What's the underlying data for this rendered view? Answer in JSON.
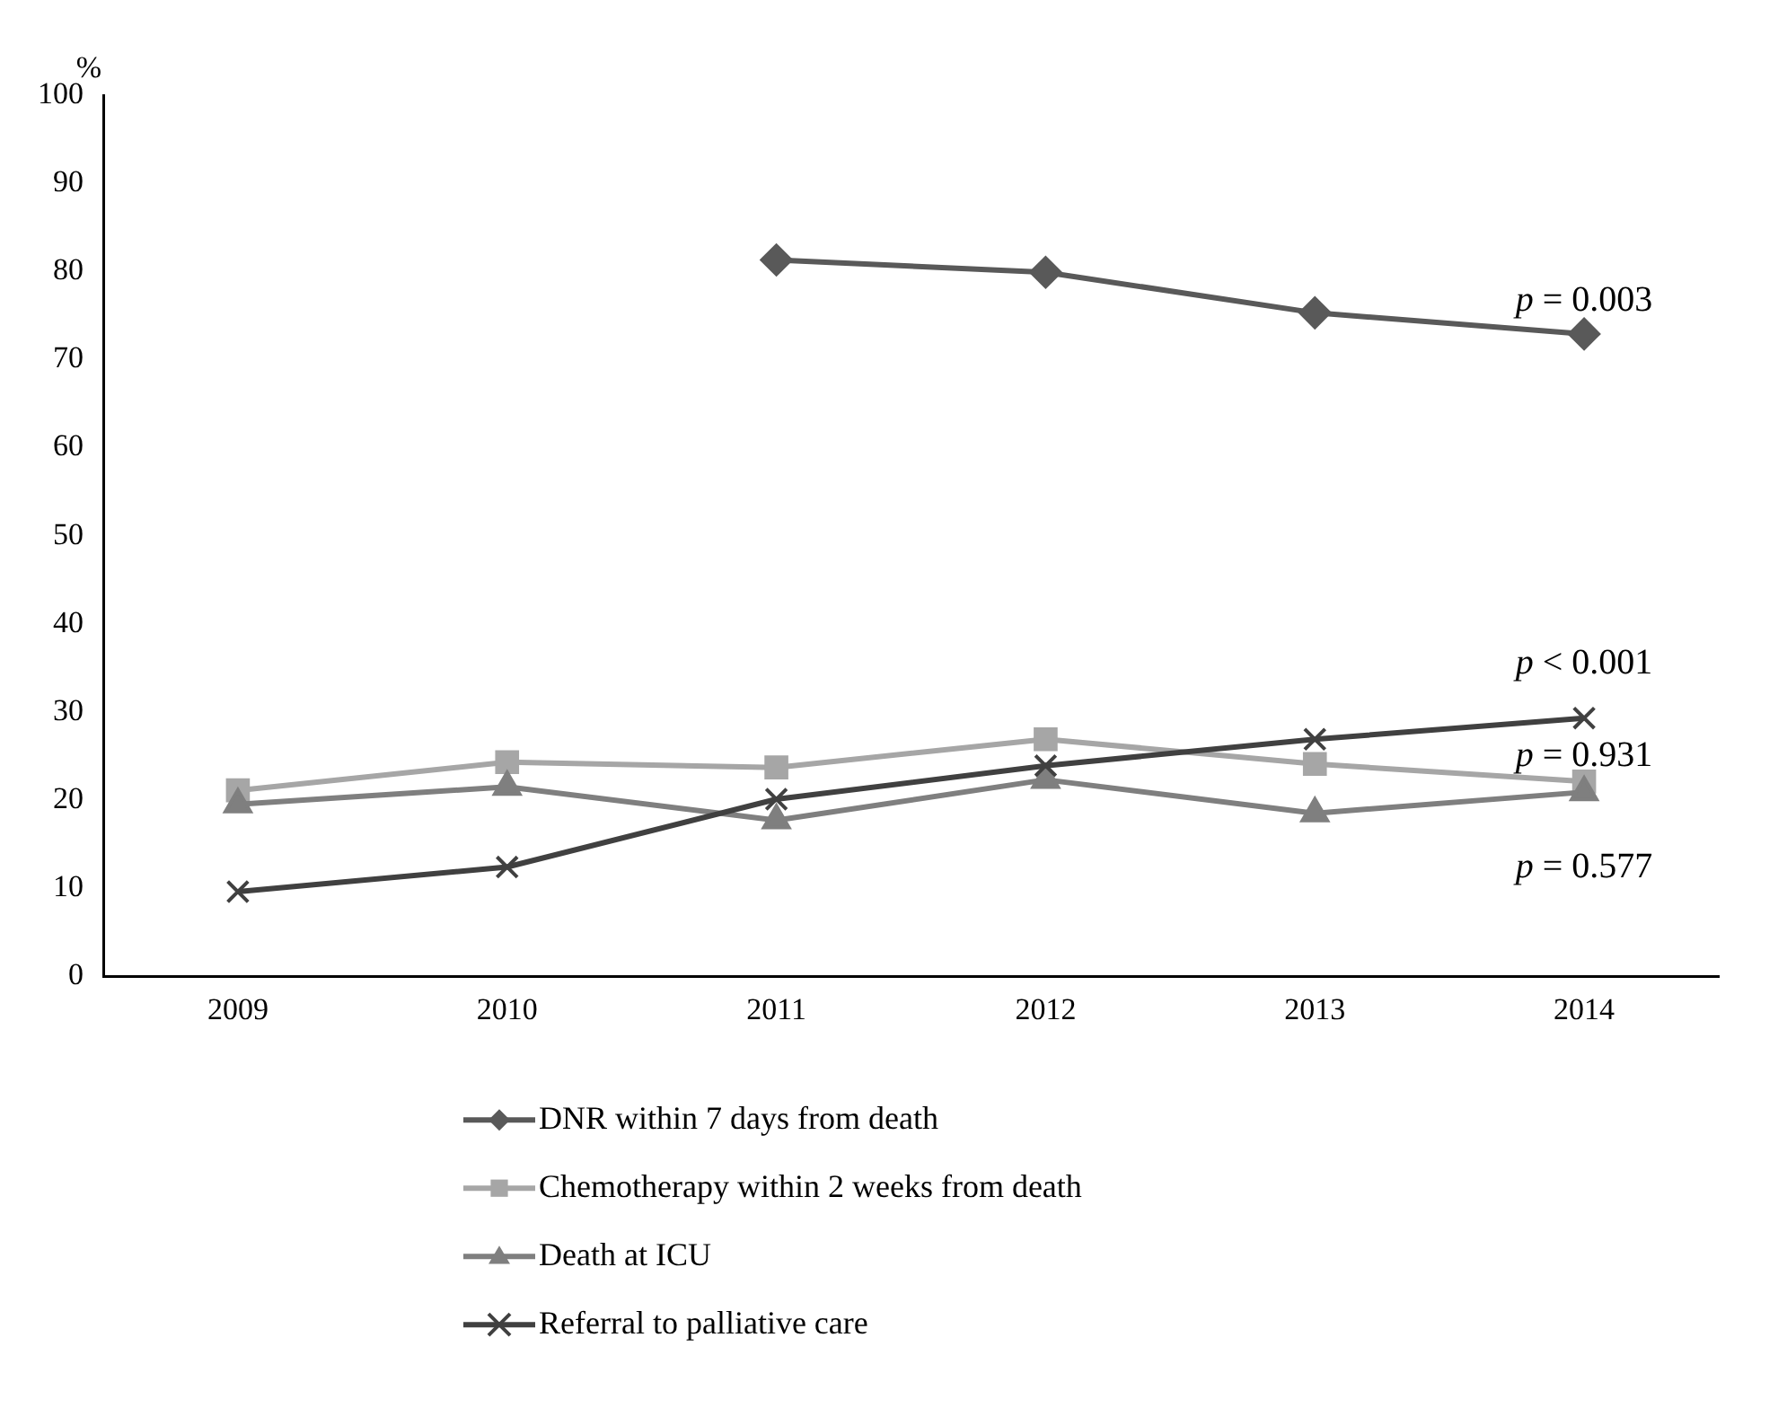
{
  "chart_data": {
    "type": "line",
    "ylabel": "%",
    "categories": [
      "2009",
      "2010",
      "2011",
      "2012",
      "2013",
      "2014"
    ],
    "series": [
      {
        "name": "DNR within 7 days from death",
        "color": "#595959",
        "marker": "diamond",
        "values": [
          null,
          null,
          81.3,
          79.9,
          75.3,
          72.9
        ]
      },
      {
        "name": "Chemotherapy within 2 weeks from death",
        "color": "#a6a6a6",
        "marker": "square",
        "values": [
          21.1,
          24.3,
          23.7,
          26.9,
          24.1,
          22.1
        ]
      },
      {
        "name": "Death at ICU",
        "color": "#7f7f7f",
        "marker": "triangle",
        "values": [
          19.5,
          21.5,
          17.7,
          22.3,
          18.5,
          20.9
        ]
      },
      {
        "name": "Referral to palliative care",
        "color": "#404040",
        "marker": "cross",
        "values": [
          9.6,
          12.4,
          20.1,
          23.9,
          26.9,
          29.3
        ]
      }
    ],
    "ylim": [
      0,
      100
    ],
    "yticks": [
      0,
      10,
      20,
      30,
      40,
      50,
      60,
      70,
      80,
      90,
      100
    ],
    "grid": false,
    "legend": "bottom",
    "annotations": [
      "p = 0.003",
      "p = 0.931",
      "p = 0.577",
      "p < 0.001"
    ]
  }
}
